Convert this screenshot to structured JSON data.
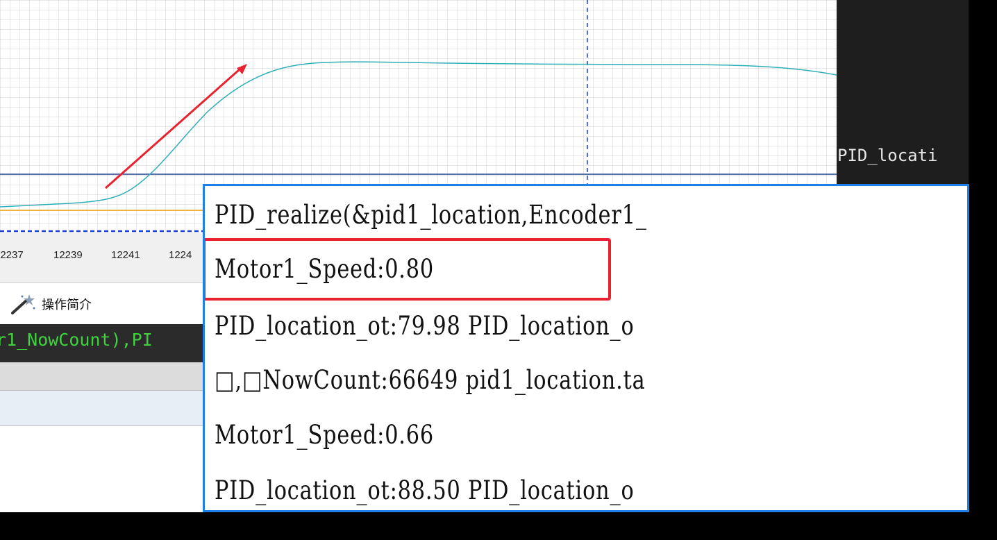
{
  "chart": {
    "x_tick_labels": [
      "12237",
      "12239",
      "12241",
      "1224"
    ],
    "colors": {
      "response_curve": "#2eaeb8",
      "reference_line": "#1f3f8f",
      "baseline_line": "#f0b43c",
      "cursor_line": "#1a3fd6",
      "arrow": "#e8232f"
    }
  },
  "side_panel": {
    "text": "PID_locati"
  },
  "toolbar": {
    "item_label": "操作简介",
    "item_icon": "magic-wand-icon"
  },
  "code_strip": {
    "text": "r1_NowCount),PI"
  },
  "popup": {
    "lines": [
      "PID_realize(&pid1_location,Encoder1_",
      "Motor1_Speed:0.80",
      "PID_location_ot:79.98 PID_location_o",
      "□,□NowCount:66649 pid1_location.ta",
      "Motor1_Speed:0.66",
      "PID_location_ot:88.50 PID_location_o"
    ],
    "highlight_color": "#e8232f",
    "border_color": "#1e7fe6"
  }
}
